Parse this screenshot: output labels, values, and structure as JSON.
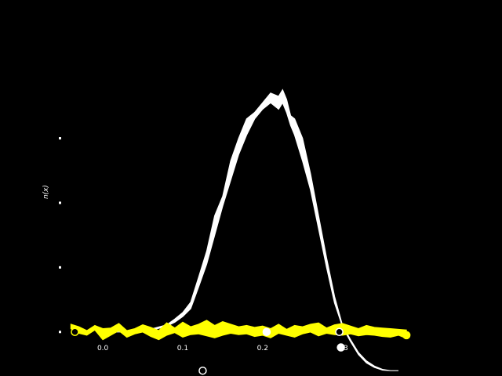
{
  "chart_data": {
    "type": "area",
    "title": "",
    "xlabel": "",
    "ylabel": "n(x)",
    "xlim": [
      -0.06,
      0.48
    ],
    "ylim": [
      -0.1,
      4.05
    ],
    "x_ticks": [
      {
        "value": 0.0,
        "label": "0.0"
      },
      {
        "value": 0.1,
        "label": "0.1"
      },
      {
        "value": 0.2,
        "label": "0.2"
      },
      {
        "value": 0.3,
        "label": "0.3"
      }
    ],
    "y_ticks": [
      0,
      1,
      2,
      3
    ],
    "grid": false,
    "background": "#000000",
    "series": [
      {
        "color": "#ffffff",
        "x": [
          0.005,
          0.02,
          0.035,
          0.05,
          0.065,
          0.08,
          0.09,
          0.1,
          0.11,
          0.12,
          0.13,
          0.14,
          0.15,
          0.16,
          0.17,
          0.18,
          0.19,
          0.2,
          0.21,
          0.22,
          0.225,
          0.23,
          0.235,
          0.24,
          0.25,
          0.26,
          0.27,
          0.28,
          0.29,
          0.3,
          0.31,
          0.32,
          0.33,
          0.34,
          0.35,
          0.36,
          0.37
        ],
        "lower": [
          0.0,
          0.0,
          0.0,
          0.02,
          0.04,
          0.09,
          0.15,
          0.24,
          0.36,
          0.7,
          1.05,
          1.5,
          1.95,
          2.35,
          2.75,
          3.05,
          3.3,
          3.45,
          3.55,
          3.45,
          3.55,
          3.4,
          3.2,
          3.05,
          2.65,
          2.2,
          1.6,
          1.0,
          0.45,
          0.08,
          -0.15,
          -0.35,
          -0.48,
          -0.55,
          -0.59,
          -0.6,
          -0.6
        ],
        "upper": [
          0.0,
          0.0,
          0.01,
          0.03,
          0.06,
          0.11,
          0.2,
          0.3,
          0.46,
          0.85,
          1.25,
          1.8,
          2.1,
          2.65,
          3.0,
          3.3,
          3.4,
          3.55,
          3.7,
          3.65,
          3.75,
          3.6,
          3.35,
          3.3,
          3.0,
          2.45,
          1.8,
          1.15,
          0.55,
          0.1,
          -0.12,
          -0.32,
          -0.45,
          -0.53,
          -0.58,
          -0.6,
          -0.6
        ],
        "markers": [
          {
            "x": 0.125,
            "y": -0.6
          },
          {
            "x": 0.205,
            "y": 0.0
          },
          {
            "x": 0.296,
            "y": 0.0
          },
          {
            "x": 0.298,
            "y": -0.24
          }
        ]
      },
      {
        "color": "#ffff00",
        "x": [
          -0.04,
          -0.03,
          -0.02,
          -0.01,
          0.0,
          0.01,
          0.02,
          0.03,
          0.04,
          0.05,
          0.06,
          0.07,
          0.08,
          0.09,
          0.1,
          0.11,
          0.12,
          0.13,
          0.14,
          0.15,
          0.16,
          0.17,
          0.18,
          0.19,
          0.2,
          0.21,
          0.22,
          0.23,
          0.24,
          0.25,
          0.26,
          0.27,
          0.28,
          0.29,
          0.3,
          0.31,
          0.32,
          0.33,
          0.34,
          0.35,
          0.36,
          0.37,
          0.38
        ],
        "lower": [
          0.05,
          -0.02,
          -0.05,
          0.03,
          -0.12,
          -0.05,
          0.02,
          -0.08,
          -0.03,
          0.0,
          -0.07,
          -0.12,
          -0.05,
          -0.01,
          -0.08,
          -0.04,
          -0.03,
          -0.06,
          -0.09,
          -0.05,
          -0.02,
          -0.04,
          -0.03,
          -0.07,
          -0.05,
          -0.09,
          -0.02,
          -0.05,
          -0.08,
          -0.03,
          0.0,
          -0.06,
          -0.02,
          -0.04,
          -0.05,
          -0.03,
          -0.06,
          -0.04,
          -0.05,
          -0.07,
          -0.08,
          -0.05,
          -0.1
        ],
        "upper": [
          0.12,
          0.08,
          0.02,
          0.1,
          0.05,
          0.06,
          0.13,
          0.02,
          0.05,
          0.11,
          0.07,
          0.02,
          0.14,
          0.06,
          0.15,
          0.08,
          0.12,
          0.18,
          0.1,
          0.16,
          0.12,
          0.08,
          0.1,
          0.07,
          0.09,
          0.05,
          0.12,
          0.04,
          0.1,
          0.08,
          0.12,
          0.14,
          0.06,
          0.11,
          0.13,
          0.09,
          0.05,
          0.1,
          0.07,
          0.06,
          0.05,
          0.04,
          0.03
        ],
        "markers": [
          {
            "x": -0.035,
            "y": 0.0
          },
          {
            "x": 0.38,
            "y": -0.05
          }
        ]
      }
    ]
  }
}
